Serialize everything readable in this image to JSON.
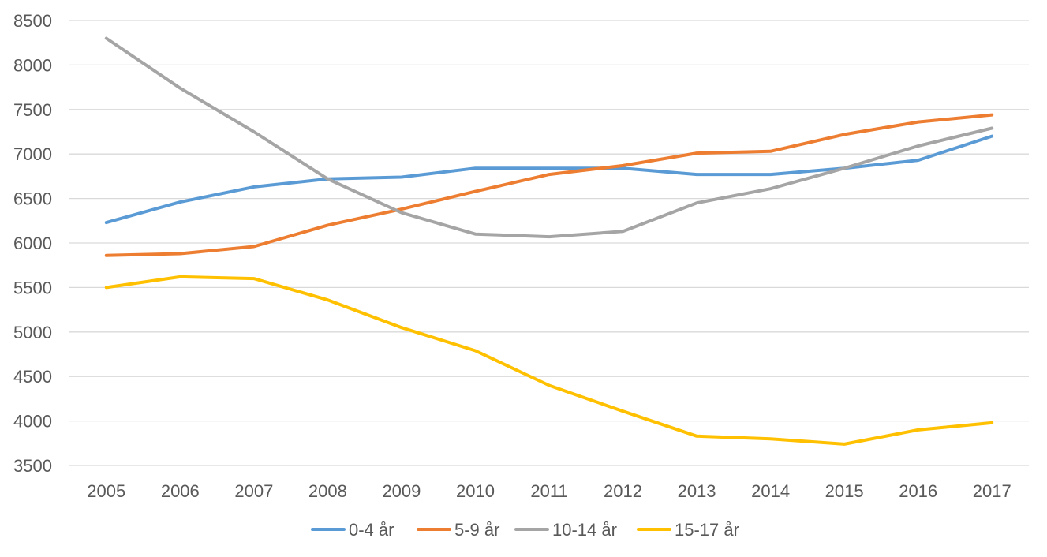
{
  "chart_data": {
    "type": "line",
    "title": "",
    "xlabel": "",
    "ylabel": "",
    "x": [
      "2005",
      "2006",
      "2007",
      "2008",
      "2009",
      "2010",
      "2011",
      "2012",
      "2013",
      "2014",
      "2015",
      "2016",
      "2017"
    ],
    "ylim": [
      3500,
      8500
    ],
    "yticks": [
      3500,
      4000,
      4500,
      5000,
      5500,
      6000,
      6500,
      7000,
      7500,
      8000,
      8500
    ],
    "grid": true,
    "legend_position": "bottom",
    "series": [
      {
        "name": "0-4 år",
        "color": "#5b9bd5",
        "values": [
          6230,
          6460,
          6630,
          6720,
          6740,
          6840,
          6840,
          6840,
          6770,
          6770,
          6840,
          6930,
          7200
        ]
      },
      {
        "name": "5-9 år",
        "color": "#ed7d31",
        "values": [
          5860,
          5880,
          5960,
          6200,
          6380,
          6580,
          6770,
          6870,
          7010,
          7030,
          7220,
          7360,
          7440
        ]
      },
      {
        "name": "10-14 år",
        "color": "#a5a5a5",
        "values": [
          8300,
          7740,
          7250,
          6720,
          6340,
          6100,
          6070,
          6130,
          6450,
          6610,
          6840,
          7090,
          7290
        ]
      },
      {
        "name": "15-17 år",
        "color": "#ffc000",
        "values": [
          5500,
          5620,
          5600,
          5360,
          5050,
          4790,
          4400,
          4110,
          3830,
          3800,
          3740,
          3900,
          3980
        ]
      }
    ]
  }
}
